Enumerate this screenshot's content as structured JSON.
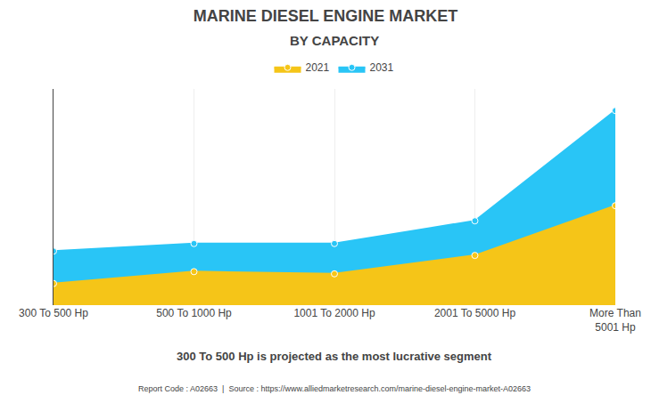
{
  "chart_data": {
    "type": "area",
    "title": "MARINE DIESEL ENGINE MARKET",
    "subtitle": "BY CAPACITY",
    "categories": [
      "300 To 500 Hp",
      "500 To 1000 Hp",
      "1001 To 2000 Hp",
      "2001 To 5000 Hp",
      "More Than\n5001 Hp"
    ],
    "series": [
      {
        "name": "2021",
        "color": "#F5C518",
        "values": [
          1.0,
          1.55,
          1.45,
          2.3,
          4.6
        ]
      },
      {
        "name": "2031",
        "color": "#29C5F6",
        "values": [
          2.5,
          2.85,
          2.85,
          3.9,
          9.0
        ]
      }
    ],
    "ylim": [
      0,
      10
    ],
    "grid": "x",
    "legend": "top",
    "tick_labels": "x",
    "annotations": [
      "300 To 500 Hp is projected as the most lucrative segment",
      "Report Code : A02663  |  Source : https://www.alliedmarketresearch.com/marine-diesel-engine-market-A02663"
    ]
  }
}
